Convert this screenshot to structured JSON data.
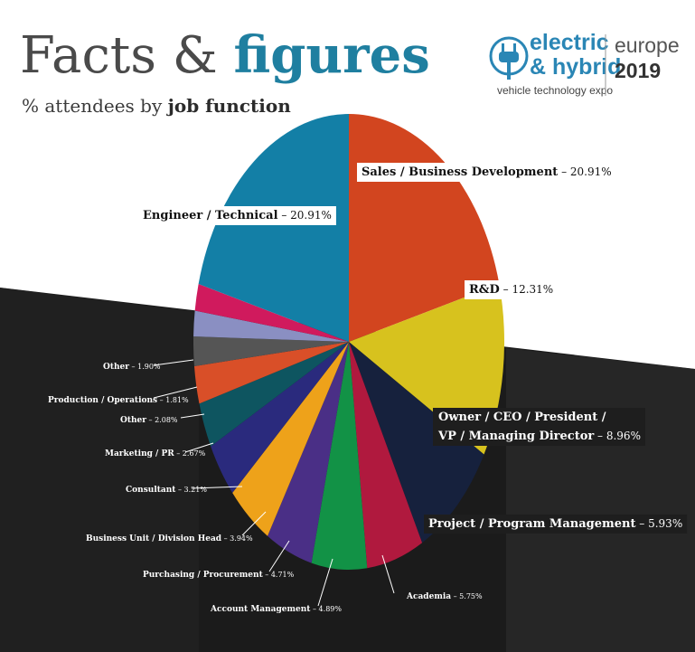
{
  "header": {
    "title_light": "Facts & ",
    "title_bold": "figures",
    "subtitle_light": "% attendees by ",
    "subtitle_bold": "job function"
  },
  "logo": {
    "line1": "electric",
    "line2": "& hybrid",
    "tagline": "vehicle technology expo",
    "region": "europe",
    "year": "2019"
  },
  "colors": {
    "title_blue": "#1f7fa0",
    "logo_blue": "#2a86b5",
    "background_dark": "#1a1a1a"
  },
  "chart_data": {
    "type": "pie",
    "start_angle_deg": -90,
    "direction": "clockwise",
    "slices": [
      {
        "label": "Sales / Business Development",
        "value": 20.91,
        "display": "20.91%",
        "color": "#d2451f"
      },
      {
        "label": "R&D",
        "value": 12.31,
        "display": "12.31%",
        "color": "#d7c21e"
      },
      {
        "label": "Owner / CEO / President / VP / Managing Director",
        "value": 8.96,
        "display": "8.96%",
        "color": "#16213d"
      },
      {
        "label": "Project / Program Management",
        "value": 5.93,
        "display": "5.93%",
        "color": "#b0193e"
      },
      {
        "label": "Academia",
        "value": 5.75,
        "display": "5.75%",
        "color": "#129246"
      },
      {
        "label": "Account Management",
        "value": 4.89,
        "display": "4.89%",
        "color": "#4a2f86"
      },
      {
        "label": "Purchasing / Procurement",
        "value": 4.71,
        "display": "4.71%",
        "color": "#eea21a"
      },
      {
        "label": "Business Unit / Division Head",
        "value": 3.94,
        "display": "3.94%",
        "color": "#2a2a7d"
      },
      {
        "label": "Consultant",
        "value": 3.21,
        "display": "3.21%",
        "color": "#0e5560"
      },
      {
        "label": "Marketing / PR",
        "value": 2.67,
        "display": "2.67%",
        "color": "#d94f28"
      },
      {
        "label": "Other",
        "value": 2.08,
        "display": "2.08%",
        "color": "#555555"
      },
      {
        "label": "Production / Operations",
        "value": 1.81,
        "display": "1.81%",
        "color": "#8a8fc2"
      },
      {
        "label": "Other",
        "value": 1.9,
        "display": "1.90%",
        "color": "#d01a5d"
      },
      {
        "label": "Engineer / Technical",
        "value": 20.91,
        "display": "20.91%",
        "color": "#137fa6"
      }
    ]
  }
}
